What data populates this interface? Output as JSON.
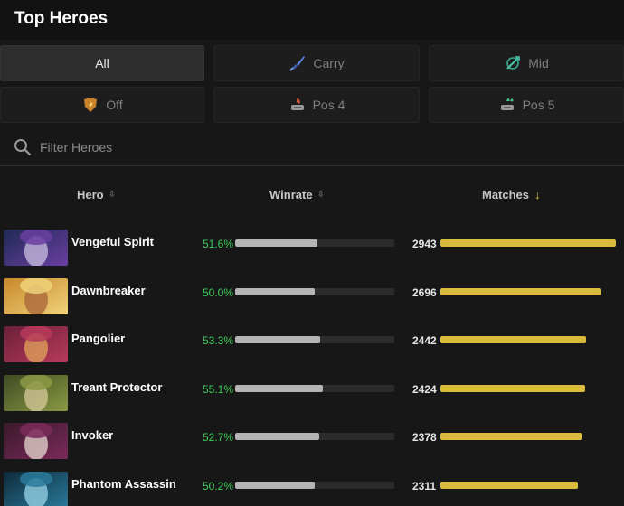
{
  "header": {
    "title": "Top Heroes"
  },
  "filters": [
    {
      "label": "All",
      "icon": "",
      "active": true
    },
    {
      "label": "Carry",
      "icon": "sword-icon",
      "active": false
    },
    {
      "label": "Mid",
      "icon": "mid-lane-icon",
      "active": false
    },
    {
      "label": "Off",
      "icon": "shield-icon",
      "active": false
    },
    {
      "label": "Pos 4",
      "icon": "pos4-icon",
      "active": false
    },
    {
      "label": "Pos 5",
      "icon": "pos5-icon",
      "active": false
    }
  ],
  "search": {
    "placeholder": "Filter Heroes",
    "value": ""
  },
  "columns": {
    "hero": {
      "label": "Hero",
      "sort": "⇳"
    },
    "winrate": {
      "label": "Winrate",
      "sort": "⇳"
    },
    "matches": {
      "label": "Matches",
      "sort": "↓"
    }
  },
  "colors": {
    "winrate_text": "#3ecf5a",
    "winrate_bar": "#b4b4b4",
    "matches_bar": "#d9bc3c",
    "sort_active": "#e6c24a"
  },
  "heroes": [
    {
      "name": "Vengeful Spirit",
      "winrate": "51.6%",
      "winrate_value": 51.6,
      "matches": "2943",
      "matches_value": 2943,
      "portrait_colors": [
        "#1f2a55",
        "#6a3fa0",
        "#c9c0e0"
      ]
    },
    {
      "name": "Dawnbreaker",
      "winrate": "50.0%",
      "winrate_value": 50.0,
      "matches": "2696",
      "matches_value": 2696,
      "portrait_colors": [
        "#c7882a",
        "#f0d27a",
        "#a8643a"
      ]
    },
    {
      "name": "Pangolier",
      "winrate": "53.3%",
      "winrate_value": 53.3,
      "matches": "2442",
      "matches_value": 2442,
      "portrait_colors": [
        "#6a1f3a",
        "#b73a5a",
        "#e3a45a"
      ]
    },
    {
      "name": "Treant Protector",
      "winrate": "55.1%",
      "winrate_value": 55.1,
      "matches": "2424",
      "matches_value": 2424,
      "portrait_colors": [
        "#3e4a22",
        "#8c9a44",
        "#d6c99a"
      ]
    },
    {
      "name": "Invoker",
      "winrate": "52.7%",
      "winrate_value": 52.7,
      "matches": "2378",
      "matches_value": 2378,
      "portrait_colors": [
        "#3a1a2a",
        "#7a2a5a",
        "#e8d8d0"
      ]
    },
    {
      "name": "Phantom Assassin",
      "winrate": "50.2%",
      "winrate_value": 50.2,
      "matches": "2311",
      "matches_value": 2311,
      "portrait_colors": [
        "#0e2a3a",
        "#2a7a9a",
        "#9ad6e8"
      ]
    }
  ]
}
